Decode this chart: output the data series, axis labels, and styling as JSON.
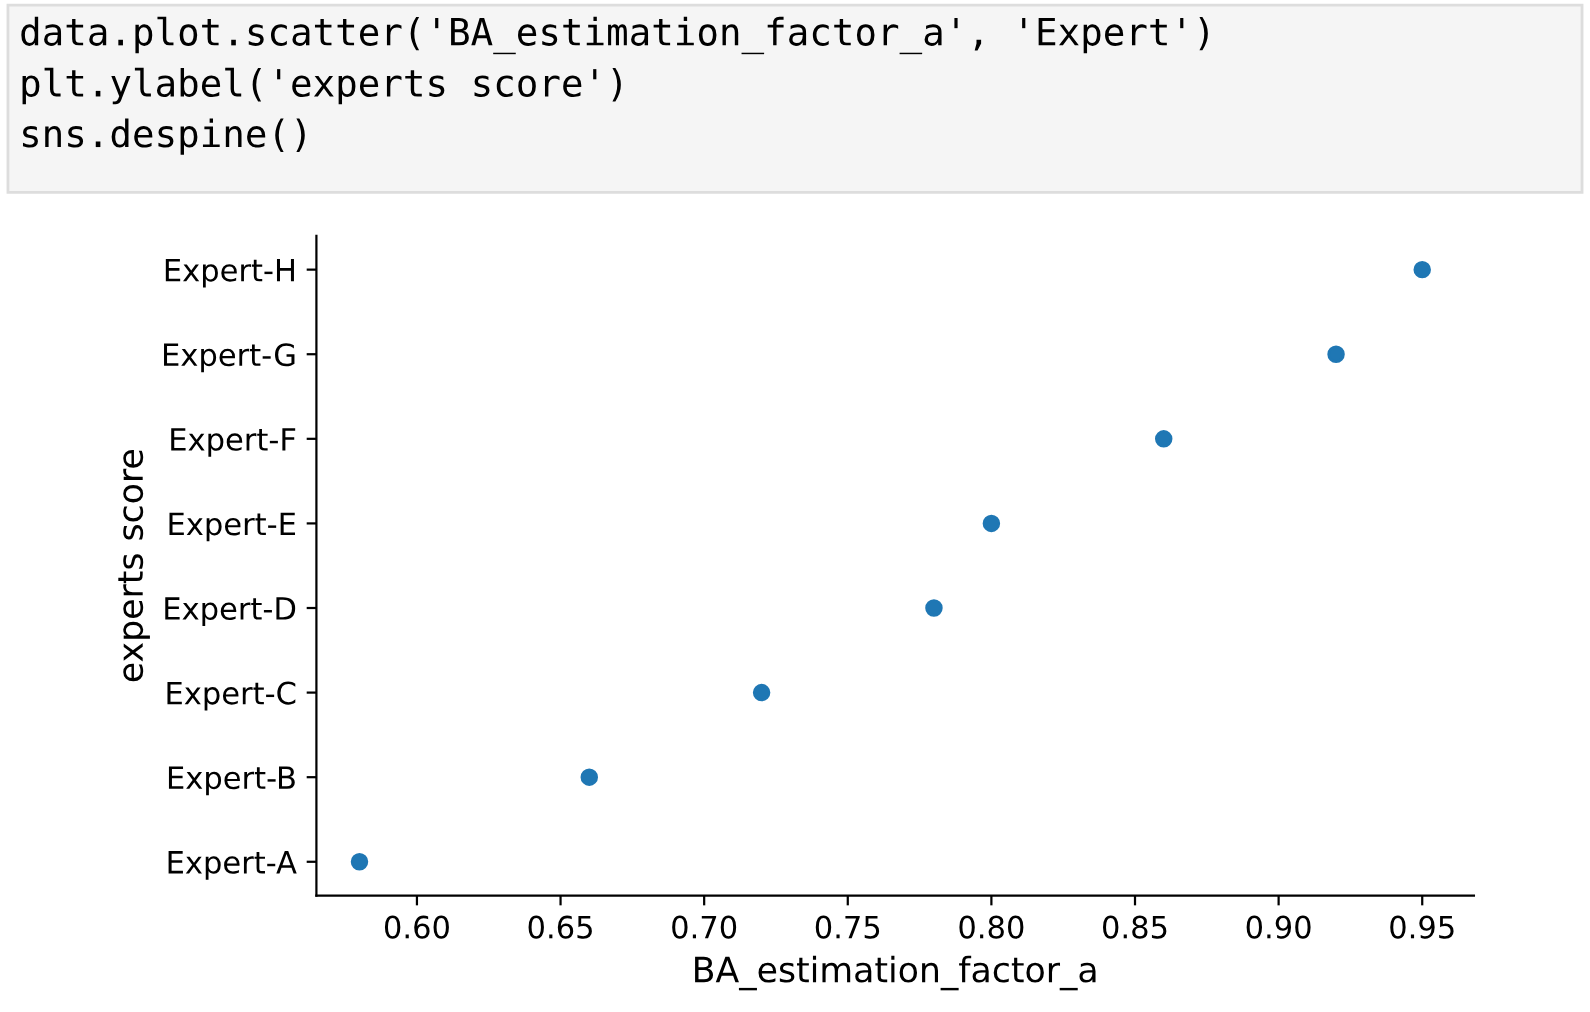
{
  "chart_data": {
    "type": "scatter",
    "orientation": "horizontal",
    "xlabel": "BA_estimation_factor_a",
    "ylabel": "experts score",
    "categories": [
      "Expert-H",
      "Expert-G",
      "Expert-F",
      "Expert-E",
      "Expert-D",
      "Expert-C",
      "Expert-B",
      "Expert-A"
    ],
    "values": [
      0.95,
      0.92,
      0.86,
      0.8,
      0.78,
      0.72,
      0.66,
      0.58
    ],
    "color": "#1f77b4",
    "marker": "circle",
    "grid": false,
    "xlim": [
      0.565,
      0.968
    ],
    "xticks": [
      {
        "value": 0.6,
        "label": "0.60"
      },
      {
        "value": 0.65,
        "label": "0.65"
      },
      {
        "value": 0.7,
        "label": "0.70"
      },
      {
        "value": 0.75,
        "label": "0.75"
      },
      {
        "value": 0.8,
        "label": "0.80"
      },
      {
        "value": 0.85,
        "label": "0.85"
      },
      {
        "value": 0.9,
        "label": "0.90"
      },
      {
        "value": 0.95,
        "label": "0.95"
      }
    ],
    "annotations": [
      "data.plot.scatter('BA_estimation_factor_a', 'Expert')",
      "plt.ylabel('experts score')",
      "sns.despine()"
    ]
  }
}
